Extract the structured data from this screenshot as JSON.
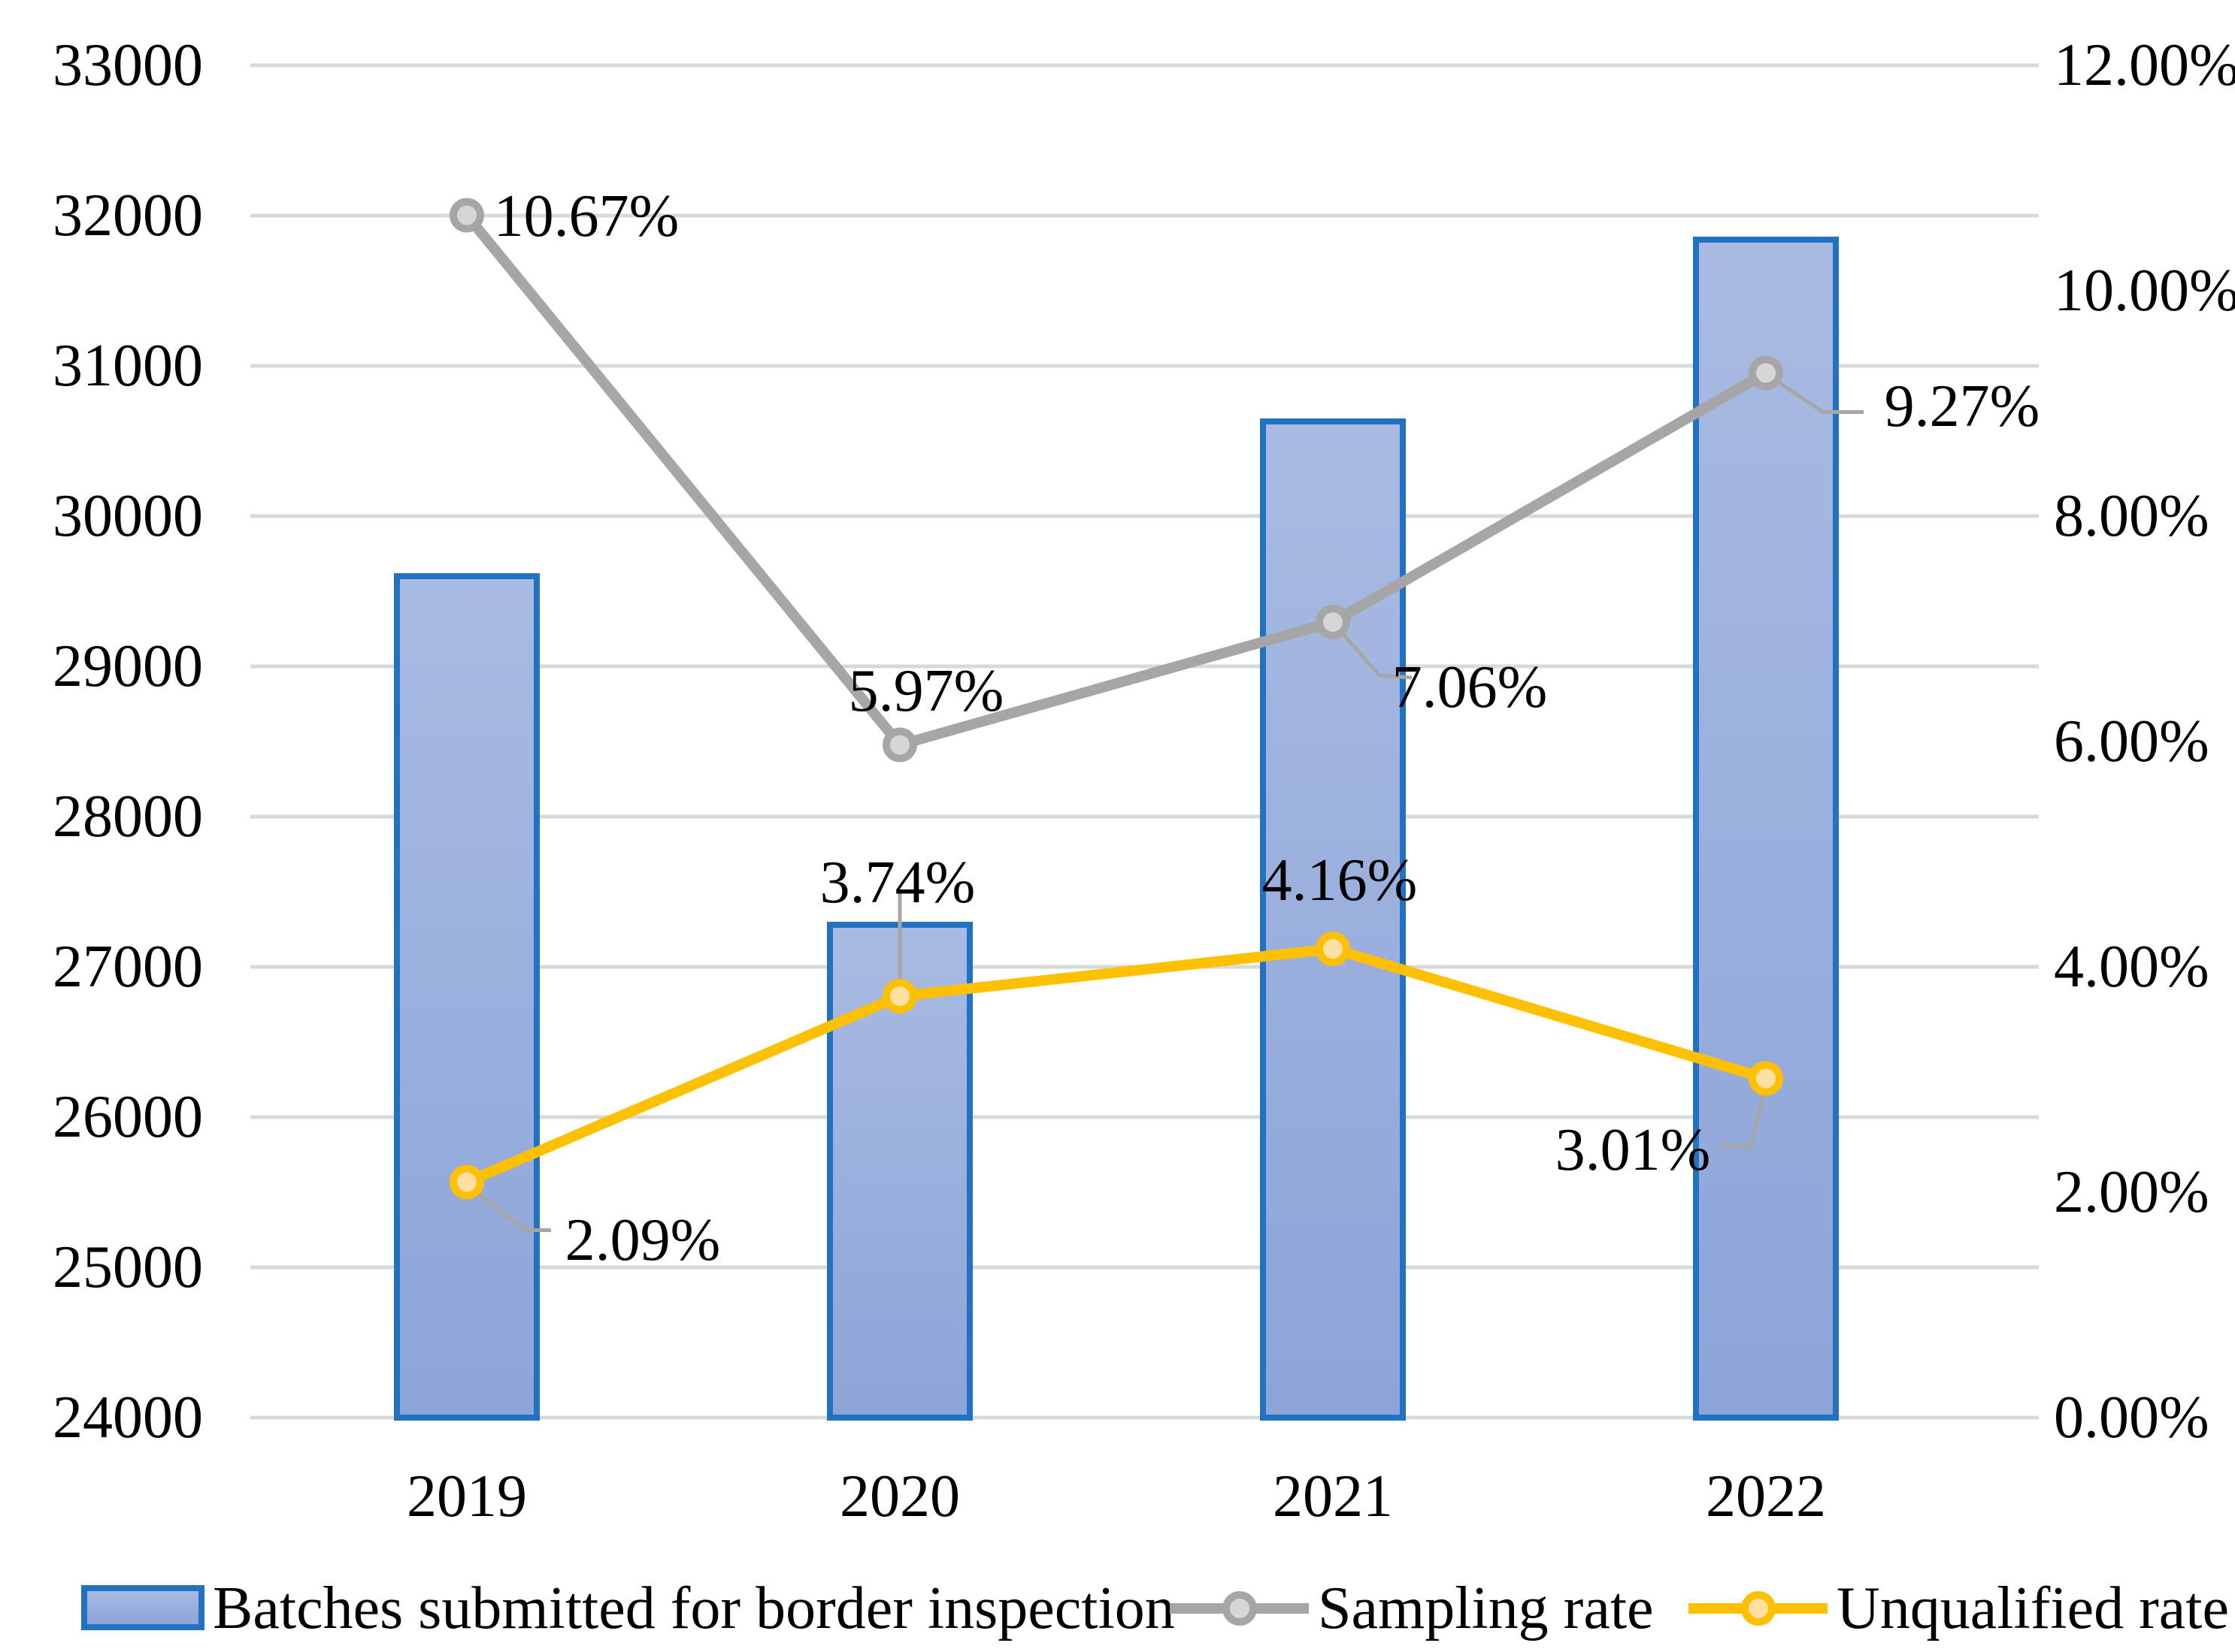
{
  "figure": {
    "background": "#FFFFFF"
  },
  "legend": {
    "items": [
      {
        "label": "Batches submitted for border inspection",
        "type": "bar-swatch"
      },
      {
        "label": "Sampling rate",
        "type": "line-marker"
      },
      {
        "label": "Unqualified rate",
        "type": "line-marker"
      }
    ]
  },
  "chart_data": {
    "type": "combo-bar-line",
    "title": "",
    "categories": [
      "2019",
      "2020",
      "2021",
      "2022"
    ],
    "series": [
      {
        "name": "Batches submitted for border inspection",
        "chart_type": "bar",
        "axis": "left",
        "values": [
          29600,
          27280,
          30630,
          31840
        ]
      },
      {
        "name": "Sampling rate",
        "chart_type": "line",
        "axis": "right",
        "values": [
          10.67,
          5.97,
          7.06,
          9.27
        ],
        "data_labels": [
          "10.67%",
          "5.97%",
          "7.06%",
          "9.27%"
        ]
      },
      {
        "name": "Unqualified rate",
        "chart_type": "line",
        "axis": "right",
        "values": [
          2.09,
          3.74,
          4.16,
          3.01
        ],
        "data_labels": [
          "2.09%",
          "3.74%",
          "4.16%",
          "3.01%"
        ]
      }
    ],
    "left_axis": {
      "min": 24000,
      "max": 33000,
      "step": 1000,
      "tick_labels": [
        "33000",
        "32000",
        "31000",
        "30000",
        "29000",
        "28000",
        "27000",
        "26000",
        "25000",
        "24000"
      ]
    },
    "right_axis": {
      "min": 0,
      "max": 12,
      "step": 2,
      "tick_labels": [
        "12.00%",
        "10.00%",
        "8.00%",
        "6.00%",
        "4.00%",
        "2.00%",
        "0.00%"
      ]
    },
    "gridlines": true,
    "legend_position": "bottom",
    "colors": {
      "bar_fill_top": "#A9BBE2",
      "bar_fill_bottom": "#8CA4D8",
      "bar_border": "#2272C4",
      "sampling_line": "#A6A6A6",
      "sampling_marker_fill": "#D6D6D6",
      "unqualified_line": "#FFC000",
      "unqualified_marker_fill": "#FFE0A3",
      "gridline": "#D9D9D9",
      "leader": "#A6A6A6",
      "text": "#000000"
    }
  }
}
